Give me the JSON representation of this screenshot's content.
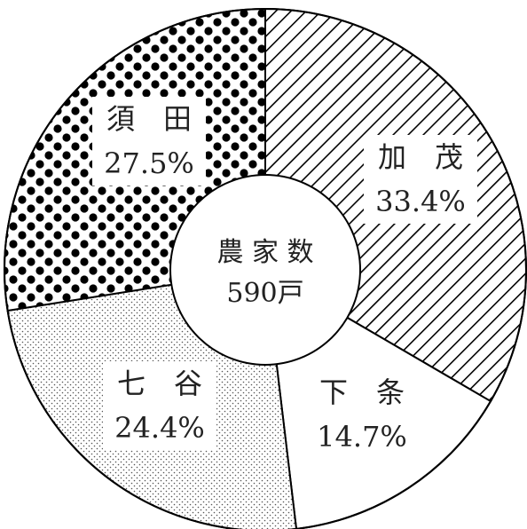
{
  "chart_data": {
    "type": "pie",
    "variant": "donut",
    "center_label": {
      "line1": "農 家 数",
      "line2": "590戸"
    },
    "slices": [
      {
        "name": "加　茂",
        "value": 33.4,
        "label": "33.4%",
        "pattern": "diagonal-hatch"
      },
      {
        "name": "下　条",
        "value": 14.7,
        "label": "14.7%",
        "pattern": "plain"
      },
      {
        "name": "七　谷",
        "value": 24.4,
        "label": "24.4%",
        "pattern": "fine-dots"
      },
      {
        "name": "須　田",
        "value": 27.5,
        "label": "27.5%",
        "pattern": "large-dots"
      }
    ],
    "start": "top",
    "direction": "clockwise",
    "colors": {
      "ink": "#000000",
      "background": "#ffffff"
    }
  }
}
